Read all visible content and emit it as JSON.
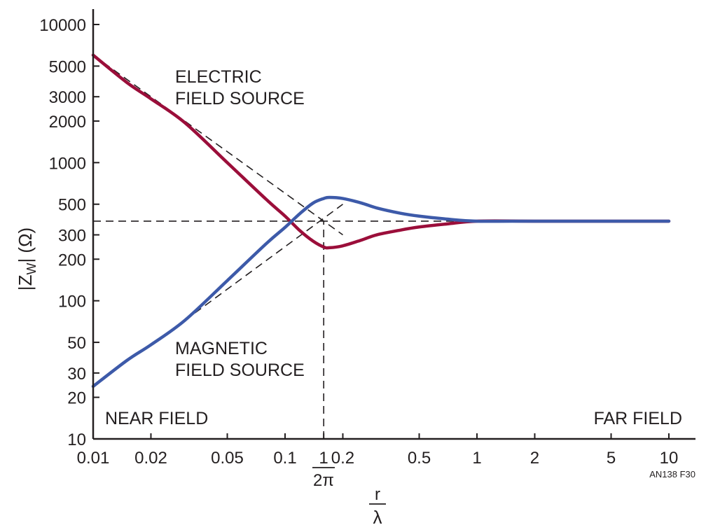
{
  "chart_data": {
    "type": "line",
    "xscale": "log",
    "yscale": "log",
    "xlim": [
      0.01,
      10
    ],
    "ylim": [
      10,
      10000
    ],
    "x_ticks": [
      "0.01",
      "0.02",
      "0.05",
      "0.1",
      "0.2",
      "0.5",
      "1",
      "2",
      "5",
      "10"
    ],
    "x_tick_values": [
      0.01,
      0.02,
      0.05,
      0.1,
      0.2,
      0.5,
      1,
      2,
      5,
      10
    ],
    "y_ticks": [
      "10000",
      "5000",
      "3000",
      "2000",
      "1000",
      "500",
      "300",
      "200",
      "100",
      "50",
      "30",
      "20",
      "10"
    ],
    "y_tick_values": [
      10000,
      5000,
      3000,
      2000,
      1000,
      500,
      300,
      200,
      100,
      50,
      30,
      20,
      10
    ],
    "ylabel": "|Z",
    "ylabel_sub": "W",
    "ylabel_unit": "| (Ω)",
    "xlabel_num": "r",
    "xlabel_den": "λ",
    "special_tick": {
      "value": 0.159,
      "num": "1",
      "den": "2π"
    },
    "annotations": {
      "electric": [
        "ELECTRIC",
        "FIELD SOURCE"
      ],
      "magnetic": [
        "MAGNETIC",
        "FIELD SOURCE"
      ],
      "near": "NEAR FIELD",
      "far": "FAR FIELD",
      "code": "AN138 F30"
    },
    "series": [
      {
        "key": "electric",
        "color": "#9b0e3a",
        "x": [
          0.01,
          0.015,
          0.02,
          0.03,
          0.05,
          0.08,
          0.1,
          0.12,
          0.14,
          0.159,
          0.17,
          0.2,
          0.25,
          0.3,
          0.4,
          0.5,
          0.7,
          1,
          2,
          5,
          10
        ],
        "y": [
          6000,
          3800,
          2900,
          1950,
          1000,
          540,
          410,
          320,
          270,
          245,
          242,
          250,
          275,
          300,
          325,
          342,
          360,
          377,
          377,
          377,
          377
        ]
      },
      {
        "key": "magnetic",
        "color": "#3d5aa9",
        "x": [
          0.01,
          0.015,
          0.02,
          0.03,
          0.05,
          0.08,
          0.1,
          0.12,
          0.14,
          0.159,
          0.17,
          0.2,
          0.25,
          0.3,
          0.4,
          0.5,
          0.7,
          1,
          2,
          5,
          10
        ],
        "y": [
          24,
          37,
          48,
          72,
          140,
          260,
          340,
          430,
          510,
          550,
          560,
          550,
          510,
          470,
          430,
          410,
          390,
          377,
          377,
          377,
          377
        ]
      }
    ],
    "reference_lines": [
      {
        "label": "",
        "x": [
          0.01,
          0.2
        ],
        "y": [
          6000,
          300
        ]
      },
      {
        "label": "",
        "x": [
          0.03,
          0.2
        ],
        "y": [
          72,
          500
        ]
      },
      {
        "label": "",
        "x": [
          0.01,
          1
        ],
        "y": [
          377,
          377
        ]
      },
      {
        "label": "",
        "x": [
          0.159,
          0.159
        ],
        "y": [
          10,
          377
        ]
      }
    ]
  }
}
